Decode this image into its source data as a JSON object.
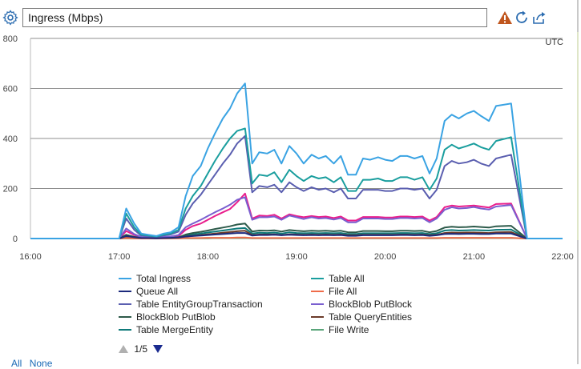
{
  "header": {
    "title": "Ingress (Mbps)",
    "icons": [
      "gear-icon",
      "warning-icon",
      "refresh-icon",
      "share-icon"
    ]
  },
  "chart_data": {
    "type": "line",
    "title": "Ingress (Mbps)",
    "timezone_label": "UTC",
    "xlabel": "",
    "ylabel": "",
    "xlim": [
      "16:00",
      "22:00"
    ],
    "ylim": [
      0,
      800
    ],
    "yticks": [
      "0",
      "200",
      "400",
      "600",
      "800"
    ],
    "xticks": [
      "16:00",
      "17:00",
      "18:00",
      "19:00",
      "20:00",
      "21:00",
      "22:00"
    ],
    "grid": true,
    "legend_position": "bottom",
    "x": [
      16.0,
      16.1,
      16.2,
      16.3,
      16.4,
      16.5,
      16.6,
      16.7,
      16.8,
      16.9,
      17.0,
      17.08,
      17.17,
      17.25,
      17.33,
      17.42,
      17.5,
      17.58,
      17.67,
      17.75,
      17.83,
      17.92,
      18.0,
      18.08,
      18.17,
      18.25,
      18.33,
      18.42,
      18.5,
      18.58,
      18.67,
      18.75,
      18.83,
      18.92,
      19.0,
      19.08,
      19.17,
      19.25,
      19.33,
      19.42,
      19.5,
      19.58,
      19.67,
      19.75,
      19.83,
      19.92,
      20.0,
      20.08,
      20.17,
      20.25,
      20.33,
      20.42,
      20.5,
      20.58,
      20.67,
      20.75,
      20.83,
      20.92,
      21.0,
      21.08,
      21.17,
      21.25,
      21.42,
      21.6,
      21.8,
      22.0,
      22.1
    ],
    "series": [
      {
        "name": "Total Ingress",
        "color": "#3aa3e3",
        "values": [
          0,
          0,
          0,
          0,
          0,
          0,
          0,
          0,
          0,
          0,
          0,
          120,
          60,
          20,
          15,
          10,
          20,
          25,
          45,
          170,
          250,
          290,
          360,
          420,
          480,
          520,
          580,
          620,
          300,
          345,
          340,
          355,
          300,
          370,
          340,
          300,
          335,
          320,
          330,
          300,
          330,
          255,
          255,
          320,
          315,
          325,
          315,
          310,
          330,
          330,
          320,
          330,
          260,
          320,
          470,
          495,
          480,
          500,
          510,
          490,
          470,
          530,
          540,
          0,
          0,
          0,
          0
        ]
      },
      {
        "name": "Table All",
        "color": "#1a9e9e",
        "values": [
          0,
          0,
          0,
          0,
          0,
          0,
          0,
          0,
          0,
          0,
          0,
          100,
          45,
          15,
          12,
          8,
          15,
          20,
          35,
          120,
          170,
          210,
          260,
          310,
          360,
          400,
          430,
          440,
          220,
          255,
          250,
          265,
          225,
          275,
          250,
          230,
          250,
          240,
          245,
          225,
          245,
          190,
          190,
          235,
          235,
          240,
          230,
          230,
          245,
          245,
          235,
          245,
          195,
          240,
          355,
          375,
          360,
          370,
          380,
          365,
          355,
          390,
          405,
          0,
          0,
          0,
          0
        ]
      },
      {
        "name": "Queue All",
        "color": "#1c2a7c",
        "values": [
          0,
          0,
          0,
          0,
          0,
          0,
          0,
          0,
          0,
          0,
          0,
          10,
          5,
          2,
          2,
          1,
          2,
          3,
          4,
          8,
          10,
          12,
          14,
          16,
          18,
          20,
          22,
          22,
          12,
          14,
          14,
          15,
          13,
          15,
          14,
          13,
          14,
          13,
          14,
          13,
          14,
          11,
          11,
          13,
          13,
          13,
          13,
          13,
          14,
          14,
          13,
          14,
          11,
          13,
          18,
          19,
          18,
          19,
          19,
          18,
          18,
          20,
          20,
          0,
          0,
          0,
          0
        ]
      },
      {
        "name": "File All",
        "color": "#ef6c4a",
        "values": [
          0,
          0,
          0,
          0,
          0,
          0,
          0,
          0,
          0,
          0,
          0,
          2,
          1,
          0,
          0,
          0,
          0,
          1,
          1,
          2,
          2,
          2,
          3,
          3,
          3,
          3,
          4,
          4,
          2,
          2,
          2,
          2,
          2,
          2,
          2,
          2,
          2,
          2,
          2,
          2,
          2,
          2,
          2,
          2,
          2,
          2,
          2,
          2,
          2,
          2,
          2,
          2,
          2,
          2,
          3,
          3,
          3,
          3,
          3,
          3,
          3,
          3,
          3,
          0,
          0,
          0,
          0
        ]
      },
      {
        "name": "Table EntityGroupTransaction",
        "color": "#5b5fb0",
        "values": [
          0,
          0,
          0,
          0,
          0,
          0,
          0,
          0,
          0,
          0,
          0,
          80,
          35,
          12,
          10,
          6,
          12,
          16,
          28,
          95,
          140,
          175,
          215,
          255,
          300,
          335,
          380,
          410,
          185,
          210,
          205,
          215,
          185,
          225,
          205,
          190,
          205,
          195,
          200,
          185,
          200,
          160,
          160,
          195,
          195,
          195,
          190,
          190,
          200,
          200,
          195,
          200,
          160,
          195,
          290,
          310,
          300,
          305,
          315,
          300,
          290,
          320,
          335,
          0,
          0,
          0,
          0
        ]
      },
      {
        "name": "BlockBlob PutBlock",
        "color": "#7a5fcf",
        "values": [
          0,
          0,
          0,
          0,
          0,
          0,
          0,
          0,
          0,
          0,
          0,
          40,
          18,
          6,
          5,
          3,
          6,
          8,
          14,
          45,
          60,
          75,
          90,
          105,
          120,
          135,
          155,
          165,
          75,
          85,
          85,
          88,
          75,
          92,
          85,
          78,
          85,
          80,
          82,
          76,
          82,
          65,
          65,
          80,
          80,
          80,
          78,
          78,
          82,
          82,
          80,
          82,
          65,
          80,
          115,
          125,
          120,
          122,
          126,
          120,
          116,
          128,
          134,
          0,
          0,
          0,
          0
        ]
      },
      {
        "name": "BlockBlob PutBlob",
        "color": "#2d5a4a",
        "values": [
          0,
          0,
          0,
          0,
          0,
          0,
          0,
          0,
          0,
          0,
          0,
          15,
          7,
          2,
          2,
          1,
          2,
          3,
          5,
          16,
          22,
          27,
          32,
          38,
          44,
          49,
          56,
          60,
          28,
          32,
          31,
          33,
          28,
          34,
          31,
          29,
          31,
          30,
          31,
          29,
          31,
          25,
          25,
          30,
          30,
          30,
          29,
          29,
          31,
          31,
          30,
          31,
          25,
          30,
          44,
          47,
          45,
          46,
          48,
          46,
          44,
          49,
          51,
          0,
          0,
          0,
          0
        ]
      },
      {
        "name": "Table QueryEntities",
        "color": "#6b3b2a",
        "values": [
          0,
          0,
          0,
          0,
          0,
          0,
          0,
          0,
          0,
          0,
          0,
          8,
          4,
          1,
          1,
          1,
          1,
          2,
          3,
          8,
          11,
          14,
          17,
          20,
          23,
          26,
          29,
          31,
          14,
          16,
          16,
          17,
          14,
          17,
          16,
          15,
          16,
          15,
          16,
          15,
          16,
          13,
          13,
          15,
          15,
          15,
          15,
          15,
          16,
          16,
          15,
          16,
          13,
          15,
          22,
          24,
          23,
          24,
          24,
          23,
          22,
          25,
          26,
          0,
          0,
          0,
          0
        ]
      },
      {
        "name": "Table MergeEntity",
        "color": "#0f7a7a",
        "values": [
          0,
          0,
          0,
          0,
          0,
          0,
          0,
          0,
          0,
          0,
          0,
          12,
          6,
          2,
          2,
          1,
          2,
          3,
          4,
          12,
          16,
          20,
          24,
          28,
          32,
          36,
          40,
          42,
          20,
          23,
          22,
          24,
          20,
          25,
          22,
          21,
          22,
          21,
          22,
          21,
          22,
          18,
          18,
          21,
          21,
          21,
          21,
          21,
          22,
          22,
          21,
          22,
          18,
          21,
          32,
          34,
          32,
          33,
          34,
          33,
          32,
          35,
          36,
          0,
          0,
          0,
          0
        ]
      },
      {
        "name": "File Write",
        "color": "#5aa57a",
        "values": [
          0,
          0,
          0,
          0,
          0,
          0,
          0,
          0,
          0,
          0,
          0,
          1,
          0,
          0,
          0,
          0,
          0,
          0,
          1,
          1,
          1,
          1,
          1,
          2,
          2,
          2,
          2,
          2,
          1,
          1,
          1,
          1,
          1,
          1,
          1,
          1,
          1,
          1,
          1,
          1,
          1,
          1,
          1,
          1,
          1,
          1,
          1,
          1,
          1,
          1,
          1,
          1,
          1,
          1,
          2,
          2,
          2,
          2,
          2,
          2,
          2,
          2,
          2,
          0,
          0,
          0,
          0
        ]
      },
      {
        "name": "",
        "color": "#e91e8c",
        "values": [
          0,
          0,
          0,
          0,
          0,
          0,
          0,
          0,
          0,
          0,
          0,
          30,
          14,
          5,
          4,
          2,
          5,
          6,
          10,
          35,
          50,
          60,
          75,
          90,
          105,
          118,
          145,
          180,
          80,
          92,
          90,
          95,
          80,
          97,
          90,
          85,
          90,
          86,
          88,
          82,
          88,
          72,
          72,
          86,
          86,
          86,
          84,
          84,
          88,
          88,
          86,
          88,
          72,
          86,
          125,
          132,
          128,
          130,
          132,
          128,
          124,
          138,
          140,
          0,
          0,
          0,
          0
        ]
      }
    ]
  },
  "legend": {
    "items": [
      {
        "label": "Total Ingress",
        "color": "#3aa3e3"
      },
      {
        "label": "Table All",
        "color": "#1a9e9e"
      },
      {
        "label": "Queue All",
        "color": "#1c2a7c"
      },
      {
        "label": "File All",
        "color": "#ef6c4a"
      },
      {
        "label": "Table EntityGroupTransaction",
        "color": "#5b5fb0"
      },
      {
        "label": "BlockBlob PutBlock",
        "color": "#7a5fcf"
      },
      {
        "label": "BlockBlob PutBlob",
        "color": "#2d5a4a"
      },
      {
        "label": "Table QueryEntities",
        "color": "#6b3b2a"
      },
      {
        "label": "Table MergeEntity",
        "color": "#0f7a7a"
      },
      {
        "label": "File Write",
        "color": "#5aa57a"
      }
    ]
  },
  "pager": {
    "label": "1/5"
  },
  "selection": {
    "all": "All",
    "none": "None"
  }
}
